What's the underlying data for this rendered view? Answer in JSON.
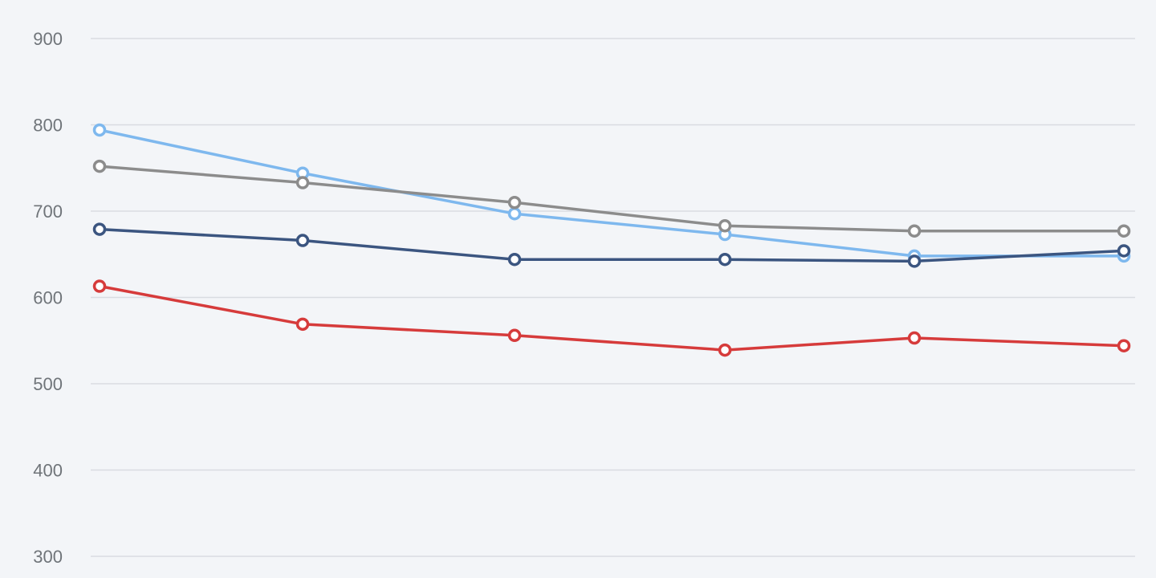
{
  "chart_data": {
    "type": "line",
    "title": "",
    "xlabel": "",
    "ylabel": "",
    "ylim": [
      300,
      900
    ],
    "y_ticks": [
      300,
      400,
      500,
      600,
      700,
      800,
      900
    ],
    "grid": true,
    "legend": "none",
    "x": [
      1,
      2,
      3,
      4,
      5,
      6
    ],
    "x_tick_labels_visible": false,
    "series": [
      {
        "color": "#7eb8ee",
        "values": [
          794,
          744,
          697,
          673,
          648,
          648
        ]
      },
      {
        "color": "#8c8c8c",
        "values": [
          752,
          733,
          710,
          683,
          677,
          677
        ]
      },
      {
        "color": "#3b5580",
        "values": [
          679,
          666,
          644,
          644,
          642,
          654
        ]
      },
      {
        "color": "#d63b3b",
        "values": [
          613,
          569,
          556,
          539,
          553,
          544
        ]
      }
    ]
  }
}
